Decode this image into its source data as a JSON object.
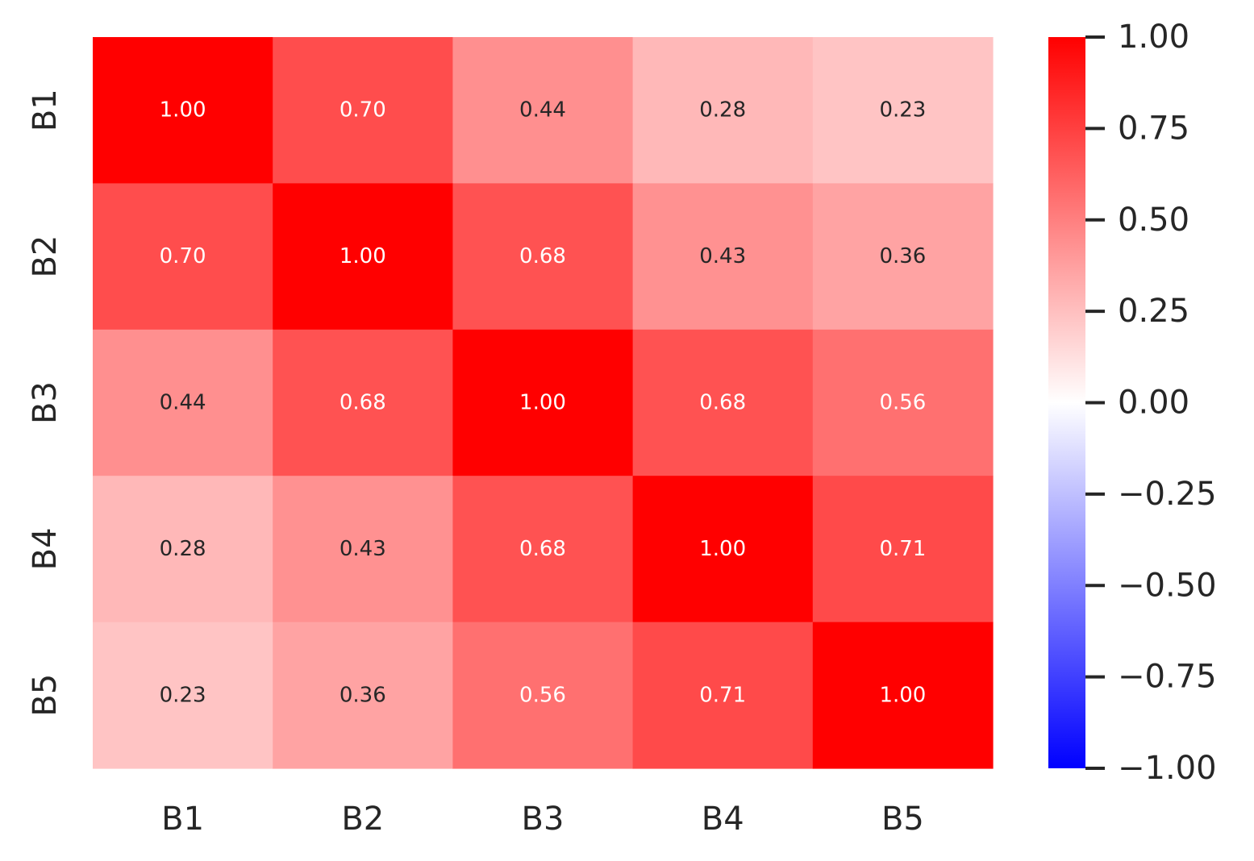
{
  "chart_data": {
    "type": "heatmap",
    "title": "",
    "xlabel": "",
    "ylabel": "",
    "x_categories": [
      "B1",
      "B2",
      "B3",
      "B4",
      "B5"
    ],
    "y_categories": [
      "B1",
      "B2",
      "B3",
      "B4",
      "B5"
    ],
    "values": [
      [
        1.0,
        0.7,
        0.44,
        0.28,
        0.23
      ],
      [
        0.7,
        1.0,
        0.68,
        0.43,
        0.36
      ],
      [
        0.44,
        0.68,
        1.0,
        0.68,
        0.56
      ],
      [
        0.28,
        0.43,
        0.68,
        1.0,
        0.71
      ],
      [
        0.23,
        0.36,
        0.56,
        0.71,
        1.0
      ]
    ],
    "annotation_format": "0.00",
    "colorscale": {
      "low": "#0000ff",
      "mid": "#ffffff",
      "high": "#ff0000"
    },
    "vmin": -1.0,
    "vmax": 1.0,
    "colorbar": {
      "ticks": [
        1.0,
        0.75,
        0.5,
        0.25,
        0.0,
        -0.25,
        -0.5,
        -0.75,
        -1.0
      ],
      "tick_labels": [
        "1.00",
        "0.75",
        "0.50",
        "0.25",
        "0.00",
        "−0.25",
        "−0.50",
        "−0.75",
        "−1.00"
      ]
    },
    "colors": {
      "text_dark": "#262626",
      "text_light": "#ffffff"
    }
  }
}
